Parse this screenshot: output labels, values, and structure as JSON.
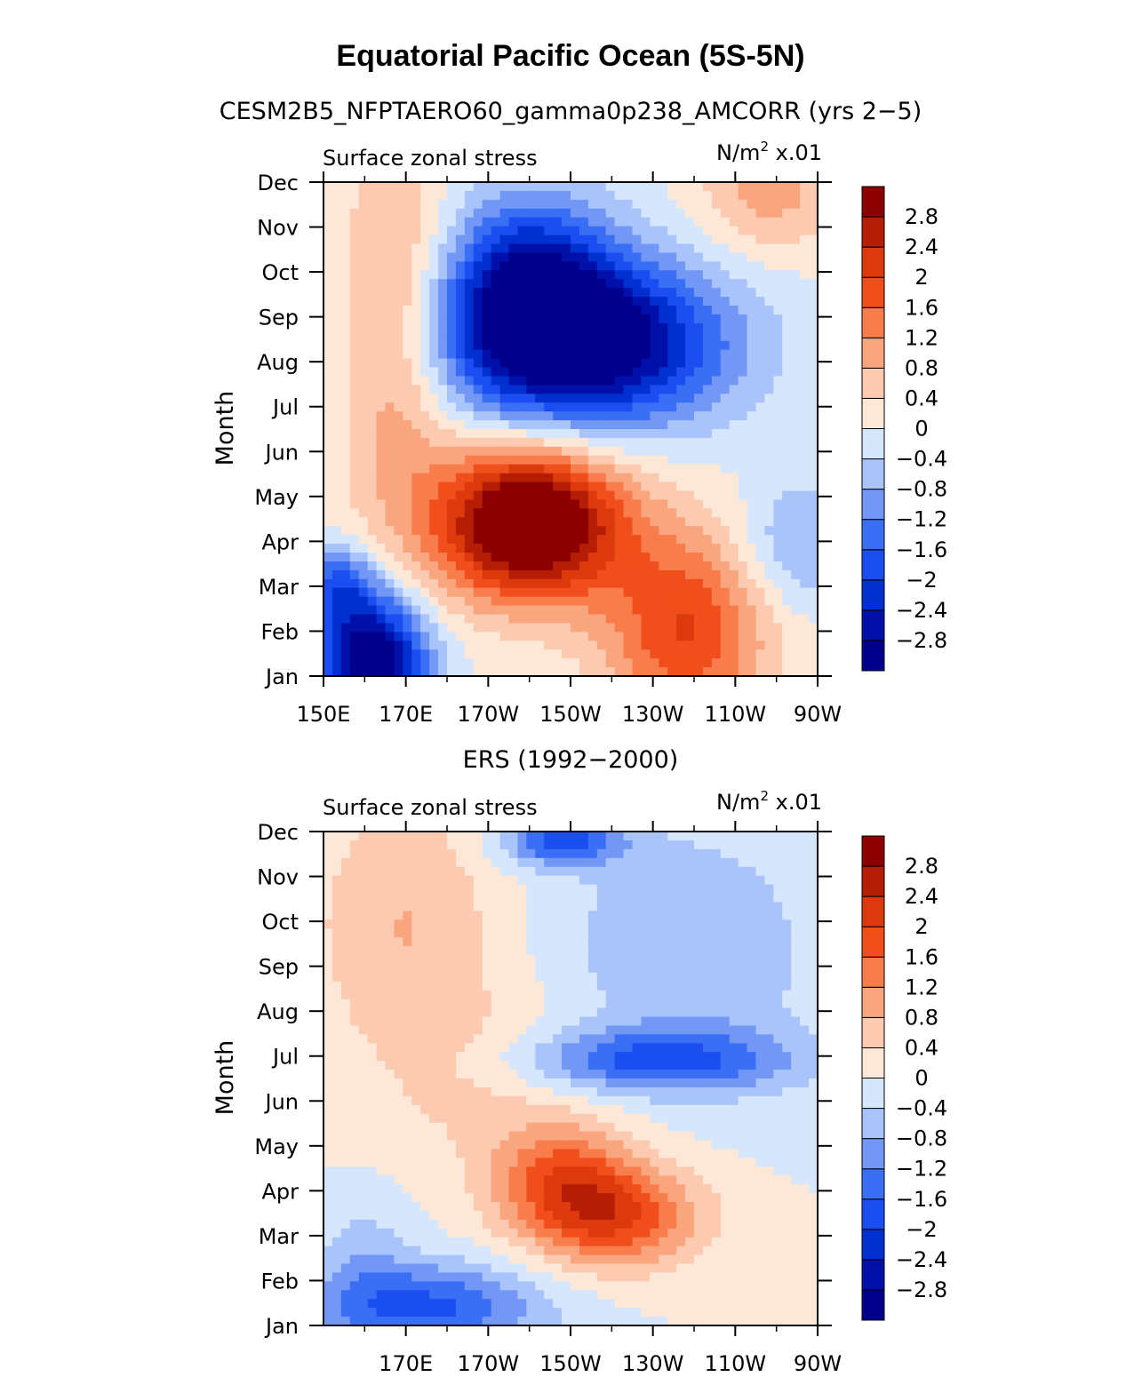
{
  "figure": {
    "title": "Equatorial Pacific Ocean (5S-5N)"
  },
  "chart_data": [
    {
      "type": "heatmap",
      "panel_title": "CESM2B5_NFPTAERO60_gamma0p238_AMCORR (yrs 2−5)",
      "left_label": "Surface zonal stress",
      "units_base": "N/m",
      "units_exp": "2",
      "units_scale": "x.01",
      "ylabel": "Month",
      "x_ticks": [
        "150E",
        "170E",
        "170W",
        "150W",
        "130W",
        "110W",
        "90W"
      ],
      "x_range_deg": [
        150,
        270
      ],
      "y_ticks": [
        "Jan",
        "Feb",
        "Mar",
        "Apr",
        "May",
        "Jun",
        "Jul",
        "Aug",
        "Sep",
        "Oct",
        "Nov",
        "Dec"
      ],
      "cbar_levels": [
        "−2.8",
        "−2.4",
        "−2",
        "−1.6",
        "−1.2",
        "−0.8",
        "−0.4",
        "0",
        "0.4",
        "0.8",
        "1.2",
        "1.6",
        "2",
        "2.4",
        "2.8"
      ],
      "features": [
        {
          "lon": 162,
          "month": 1.3,
          "amp": -3.6,
          "sx": 9,
          "sy": 1.0
        },
        {
          "lon": 153,
          "month": 3.0,
          "amp": -1.6,
          "sx": 7,
          "sy": 0.6
        },
        {
          "lon": 200,
          "month": 4.4,
          "amp": 4.0,
          "sx": 16,
          "sy": 1.2
        },
        {
          "lon": 238,
          "month": 2.0,
          "amp": 2.0,
          "sx": 14,
          "sy": 1.6
        },
        {
          "lon": 212,
          "month": 8.4,
          "amp": -3.6,
          "sx": 24,
          "sy": 1.3
        },
        {
          "lon": 200,
          "month": 10.0,
          "amp": -2.0,
          "sx": 14,
          "sy": 1.3
        },
        {
          "lon": 168,
          "month": 8.5,
          "amp": 1.3,
          "sx": 10,
          "sy": 2.8
        },
        {
          "lon": 258,
          "month": 11.8,
          "amp": 1.0,
          "sx": 12,
          "sy": 1.0
        },
        {
          "lon": 265,
          "month": 3.9,
          "amp": -0.9,
          "sx": 10,
          "sy": 1.0
        }
      ]
    },
    {
      "type": "heatmap",
      "panel_title": "ERS (1992−2000)",
      "left_label": "Surface zonal stress",
      "units_base": "N/m",
      "units_exp": "2",
      "units_scale": "x.01",
      "ylabel": "Month",
      "x_ticks": [
        "170E",
        "170W",
        "150W",
        "130W",
        "110W",
        "90W"
      ],
      "x_range_deg": [
        150,
        270
      ],
      "y_ticks": [
        "Jan",
        "Feb",
        "Mar",
        "Apr",
        "May",
        "Jun",
        "Jul",
        "Aug",
        "Sep",
        "Oct",
        "Nov",
        "Dec"
      ],
      "cbar_levels": [
        "−2.8",
        "−2.4",
        "−2",
        "−1.6",
        "−1.2",
        "−0.8",
        "−0.4",
        "0",
        "0.4",
        "0.8",
        "1.2",
        "1.6",
        "2",
        "2.4",
        "2.8"
      ],
      "features": [
        {
          "lon": 175,
          "month": 1.4,
          "amp": -1.7,
          "sx": 20,
          "sy": 0.7
        },
        {
          "lon": 160,
          "month": 2.6,
          "amp": -0.5,
          "sx": 8,
          "sy": 1.0
        },
        {
          "lon": 220,
          "month": 3.4,
          "amp": 2.0,
          "sx": 15,
          "sy": 0.8
        },
        {
          "lon": 208,
          "month": 4.4,
          "amp": 1.4,
          "sx": 12,
          "sy": 0.8
        },
        {
          "lon": 190,
          "month": 6.5,
          "amp": 0.5,
          "sx": 20,
          "sy": 1.4
        },
        {
          "lon": 230,
          "month": 6.9,
          "amp": -1.6,
          "sx": 24,
          "sy": 0.5
        },
        {
          "lon": 238,
          "month": 9.3,
          "amp": -0.8,
          "sx": 22,
          "sy": 2.0
        },
        {
          "lon": 208,
          "month": 11.8,
          "amp": -1.8,
          "sx": 10,
          "sy": 0.4
        },
        {
          "lon": 170,
          "month": 10.0,
          "amp": 0.8,
          "sx": 16,
          "sy": 2.0
        }
      ]
    }
  ],
  "palette": [
    "#00008b",
    "#0010a8",
    "#0030d0",
    "#1a4ef0",
    "#3a6ef5",
    "#7297f5",
    "#a9c4fa",
    "#d6e6fd",
    "#fde8d8",
    "#fccab0",
    "#f9a67e",
    "#f97c4c",
    "#f04f1c",
    "#dc3a0d",
    "#b51e05",
    "#8b0000"
  ]
}
